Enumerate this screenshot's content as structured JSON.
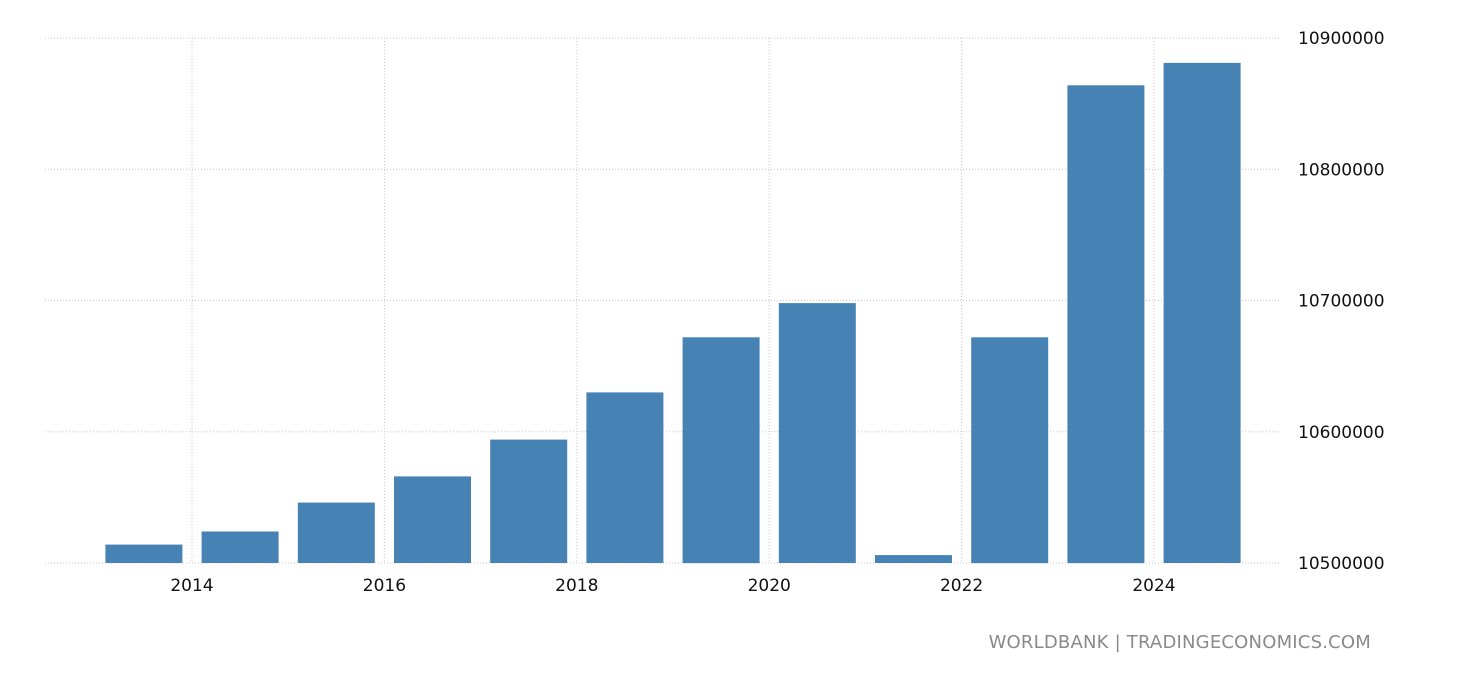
{
  "chart_data": {
    "type": "bar",
    "x": [
      2013,
      2014,
      2015,
      2016,
      2017,
      2018,
      2019,
      2020,
      2021,
      2022,
      2023,
      2024
    ],
    "values": [
      10514000,
      10524000,
      10546000,
      10566000,
      10594000,
      10630000,
      10672000,
      10698000,
      10506000,
      10672000,
      10864000,
      10881000
    ],
    "xticks": [
      "2014",
      "2016",
      "2018",
      "2020",
      "2022",
      "2024"
    ],
    "yticks": [
      "10500000",
      "10600000",
      "10700000",
      "10800000",
      "10900000"
    ],
    "ylim": [
      10500000,
      10900000
    ],
    "yaxis_position": "right",
    "grid": true,
    "bar_color": "#4682b4",
    "title": "",
    "xlabel": "",
    "ylabel": ""
  },
  "source": {
    "text": "WORLDBANK | TRADINGECONOMICS.COM"
  }
}
